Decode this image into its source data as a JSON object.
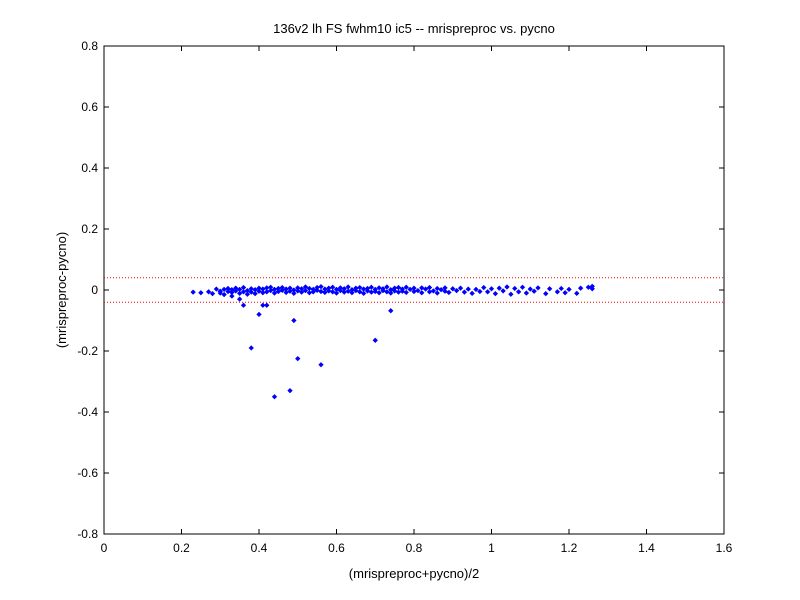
{
  "chart_data": {
    "type": "scatter",
    "title": "136v2 lh FS fwhm10 ic5 -- mrispreproc vs. pycno",
    "xlabel": "(mrispreproc+pycno)/2",
    "ylabel": "(mrispreproc-pycno)",
    "xlim": [
      0,
      1.6
    ],
    "ylim": [
      -0.8,
      0.8
    ],
    "x_ticks": [
      "0",
      "0.2",
      "0.4",
      "0.6",
      "0.8",
      "1",
      "1.2",
      "1.4",
      "1.6"
    ],
    "y_ticks": [
      "0.8",
      "0.6",
      "0.4",
      "0.2",
      "0",
      "-0.2",
      "-0.4",
      "-0.6",
      "-0.8"
    ],
    "grid": false,
    "reference_lines": [
      {
        "y": 0.04,
        "style": "dotted",
        "color": "#ff0000"
      },
      {
        "y": -0.04,
        "style": "dotted",
        "color": "#ff0000"
      }
    ],
    "series": [
      {
        "marker_color": "#0000ff",
        "points": [
          [
            0.23,
            -0.007
          ],
          [
            0.25,
            -0.009
          ],
          [
            0.27,
            -0.006
          ],
          [
            0.28,
            -0.012
          ],
          [
            0.29,
            0.003
          ],
          [
            0.3,
            -0.004
          ],
          [
            0.3,
            -0.01
          ],
          [
            0.31,
            0.002
          ],
          [
            0.31,
            -0.015
          ],
          [
            0.32,
            -0.005
          ],
          [
            0.32,
            0.005
          ],
          [
            0.33,
            -0.008
          ],
          [
            0.33,
            0.001
          ],
          [
            0.34,
            -0.003
          ],
          [
            0.34,
            0.006
          ],
          [
            0.35,
            -0.011
          ],
          [
            0.35,
            0.002
          ],
          [
            0.36,
            -0.006
          ],
          [
            0.36,
            0.008
          ],
          [
            0.37,
            -0.002
          ],
          [
            0.37,
            -0.014
          ],
          [
            0.38,
            0.004
          ],
          [
            0.38,
            -0.007
          ],
          [
            0.39,
            0.001
          ],
          [
            0.39,
            -0.012
          ],
          [
            0.4,
            0.006
          ],
          [
            0.4,
            -0.004
          ],
          [
            0.41,
            -0.009
          ],
          [
            0.41,
            0.003
          ],
          [
            0.42,
            0.007
          ],
          [
            0.42,
            -0.006
          ],
          [
            0.43,
            -0.002
          ],
          [
            0.43,
            0.009
          ],
          [
            0.44,
            -0.01
          ],
          [
            0.44,
            0.002
          ],
          [
            0.45,
            0.005
          ],
          [
            0.45,
            -0.005
          ],
          [
            0.46,
            -0.001
          ],
          [
            0.46,
            0.008
          ],
          [
            0.47,
            -0.008
          ],
          [
            0.47,
            0.003
          ],
          [
            0.48,
            0.006
          ],
          [
            0.48,
            -0.004
          ],
          [
            0.49,
            0.0
          ],
          [
            0.49,
            -0.011
          ],
          [
            0.5,
            0.007
          ],
          [
            0.5,
            -0.003
          ],
          [
            0.51,
            0.004
          ],
          [
            0.51,
            -0.007
          ],
          [
            0.52,
            0.01
          ],
          [
            0.52,
            -0.002
          ],
          [
            0.53,
            -0.009
          ],
          [
            0.53,
            0.005
          ],
          [
            0.54,
            0.002
          ],
          [
            0.54,
            -0.006
          ],
          [
            0.55,
            0.008
          ],
          [
            0.55,
            -0.001
          ],
          [
            0.56,
            -0.005
          ],
          [
            0.56,
            0.011
          ],
          [
            0.57,
            0.003
          ],
          [
            0.57,
            -0.008
          ],
          [
            0.58,
            0.006
          ],
          [
            0.58,
            -0.003
          ],
          [
            0.59,
            0.009
          ],
          [
            0.59,
            -0.006
          ],
          [
            0.6,
            0.002
          ],
          [
            0.6,
            -0.01
          ],
          [
            0.61,
            0.007
          ],
          [
            0.61,
            -0.002
          ],
          [
            0.62,
            0.004
          ],
          [
            0.62,
            -0.007
          ],
          [
            0.63,
            0.01
          ],
          [
            0.63,
            -0.004
          ],
          [
            0.64,
            0.001
          ],
          [
            0.64,
            -0.009
          ],
          [
            0.65,
            0.006
          ],
          [
            0.65,
            -0.002
          ],
          [
            0.66,
            0.008
          ],
          [
            0.66,
            -0.006
          ],
          [
            0.67,
            0.003
          ],
          [
            0.67,
            -0.011
          ],
          [
            0.68,
            0.005
          ],
          [
            0.68,
            -0.003
          ],
          [
            0.69,
            0.009
          ],
          [
            0.69,
            -0.007
          ],
          [
            0.7,
            0.002
          ],
          [
            0.7,
            -0.005
          ],
          [
            0.71,
            0.007
          ],
          [
            0.71,
            -0.009
          ],
          [
            0.72,
            0.004
          ],
          [
            0.72,
            -0.002
          ],
          [
            0.73,
            0.01
          ],
          [
            0.73,
            -0.006
          ],
          [
            0.74,
            0.001
          ],
          [
            0.74,
            -0.01
          ],
          [
            0.75,
            0.006
          ],
          [
            0.75,
            -0.003
          ],
          [
            0.76,
            0.008
          ],
          [
            0.76,
            -0.007
          ],
          [
            0.77,
            0.003
          ],
          [
            0.77,
            -0.004
          ],
          [
            0.78,
            0.009
          ],
          [
            0.78,
            -0.008
          ],
          [
            0.79,
            0.002
          ],
          [
            0.8,
            -0.005
          ],
          [
            0.8,
            0.006
          ],
          [
            0.81,
            -0.002
          ],
          [
            0.82,
            0.007
          ],
          [
            0.82,
            -0.009
          ],
          [
            0.83,
            0.003
          ],
          [
            0.84,
            -0.006
          ],
          [
            0.84,
            0.008
          ],
          [
            0.85,
            -0.003
          ],
          [
            0.86,
            0.005
          ],
          [
            0.86,
            -0.01
          ],
          [
            0.87,
            0.001
          ],
          [
            0.88,
            -0.004
          ],
          [
            0.88,
            0.007
          ],
          [
            0.89,
            -0.008
          ],
          [
            0.9,
            0.004
          ],
          [
            0.91,
            -0.002
          ],
          [
            0.92,
            0.006
          ],
          [
            0.93,
            -0.007
          ],
          [
            0.94,
            0.003
          ],
          [
            0.95,
            -0.011
          ],
          [
            0.96,
            0.002
          ],
          [
            0.97,
            -0.005
          ],
          [
            0.98,
            0.008
          ],
          [
            0.99,
            -0.006
          ],
          [
            1.0,
            0.004
          ],
          [
            1.01,
            -0.012
          ],
          [
            1.02,
            0.006
          ],
          [
            1.03,
            -0.003
          ],
          [
            1.04,
            0.01
          ],
          [
            1.05,
            -0.014
          ],
          [
            1.06,
            0.005
          ],
          [
            1.07,
            -0.006
          ],
          [
            1.08,
            0.009
          ],
          [
            1.09,
            -0.01
          ],
          [
            1.1,
            0.003
          ],
          [
            1.11,
            -0.004
          ],
          [
            1.12,
            0.007
          ],
          [
            1.14,
            -0.012
          ],
          [
            1.15,
            0.004
          ],
          [
            1.17,
            -0.006
          ],
          [
            1.18,
            0.005
          ],
          [
            1.19,
            -0.009
          ],
          [
            1.2,
            0.002
          ],
          [
            1.22,
            -0.011
          ],
          [
            1.23,
            0.006
          ],
          [
            1.25,
            0.009
          ],
          [
            1.26,
            0.004
          ],
          [
            1.26,
            0.012
          ],
          [
            0.33,
            -0.02
          ],
          [
            0.35,
            -0.03
          ],
          [
            0.36,
            -0.05
          ],
          [
            0.4,
            -0.08
          ],
          [
            0.41,
            -0.05
          ],
          [
            0.42,
            -0.05
          ],
          [
            0.38,
            -0.19
          ],
          [
            0.44,
            -0.35
          ],
          [
            0.48,
            -0.33
          ],
          [
            0.49,
            -0.1
          ],
          [
            0.5,
            -0.225
          ],
          [
            0.56,
            -0.245
          ],
          [
            0.7,
            -0.165
          ],
          [
            0.74,
            -0.068
          ]
        ]
      }
    ]
  }
}
